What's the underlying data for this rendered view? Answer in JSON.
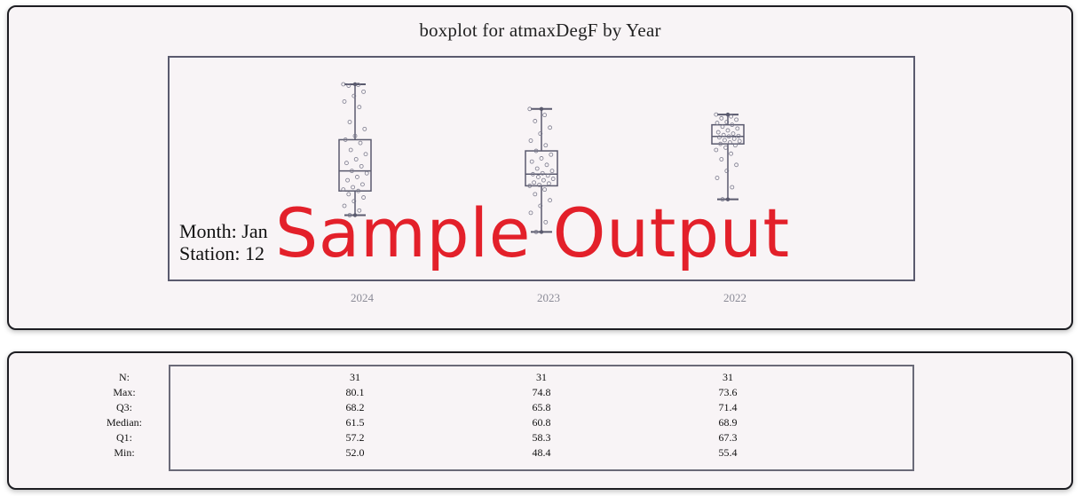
{
  "chart_panel": {
    "title": "boxplot for atmaxDegF by Year",
    "month_label": "Month: Jan",
    "station_label": "Station: 12",
    "watermark": "Sample Output"
  },
  "colors": {
    "panel_bg": "#f8f4f6",
    "box_stroke": "#5a5a6e",
    "watermark": "#e3202a"
  },
  "chart_data": {
    "type": "boxplot",
    "title": "boxplot for atmaxDegF by Year",
    "xlabel": "",
    "ylabel": "",
    "categories": [
      "2024",
      "2023",
      "2022"
    ],
    "ylim": [
      38,
      86
    ],
    "grid": false,
    "series": [
      {
        "category": "2024",
        "n": 31,
        "max": 80.1,
        "q3": 68.2,
        "median": 61.5,
        "q1": 57.2,
        "min": 52.0,
        "points": [
          80.1,
          80.0,
          79.8,
          78.5,
          77.6,
          76.4,
          75.2,
          72.0,
          70.5,
          69.0,
          68.2,
          67.5,
          66.0,
          65.1,
          64.0,
          63.2,
          62.5,
          61.5,
          61.0,
          60.2,
          59.5,
          58.6,
          58.0,
          57.5,
          57.2,
          56.5,
          55.8,
          55.0,
          54.0,
          53.0,
          52.0
        ]
      },
      {
        "category": "2023",
        "n": 31,
        "max": 74.8,
        "q3": 65.8,
        "median": 60.8,
        "q1": 58.3,
        "min": 48.4,
        "points": [
          74.8,
          73.5,
          72.2,
          70.8,
          69.5,
          68.0,
          67.0,
          65.8,
          65.0,
          64.2,
          63.5,
          62.8,
          62.0,
          61.5,
          61.0,
          60.8,
          60.5,
          60.2,
          59.8,
          59.5,
          59.0,
          58.8,
          58.5,
          58.3,
          57.5,
          56.5,
          55.2,
          54.0,
          52.5,
          50.5,
          48.4
        ]
      },
      {
        "category": "2022",
        "n": 31,
        "max": 73.6,
        "q3": 71.4,
        "median": 68.9,
        "q1": 67.3,
        "min": 55.4,
        "points": [
          73.6,
          73.2,
          72.8,
          72.5,
          72.0,
          71.8,
          71.4,
          71.0,
          70.6,
          70.2,
          69.8,
          69.5,
          69.2,
          69.0,
          68.9,
          68.7,
          68.4,
          68.1,
          67.9,
          67.6,
          67.3,
          67.0,
          66.5,
          66.0,
          65.2,
          64.0,
          62.8,
          61.5,
          60.0,
          58.0,
          55.4
        ]
      }
    ]
  },
  "stats_table": {
    "row_labels": [
      "N:",
      "Max:",
      "Q3:",
      "Median:",
      "Q1:",
      "Min:"
    ],
    "columns": [
      {
        "year": "2024",
        "values": [
          "31",
          "80.1",
          "68.2",
          "61.5",
          "57.2",
          "52.0"
        ]
      },
      {
        "year": "2023",
        "values": [
          "31",
          "74.8",
          "65.8",
          "60.8",
          "58.3",
          "48.4"
        ]
      },
      {
        "year": "2022",
        "values": [
          "31",
          "73.6",
          "71.4",
          "68.9",
          "67.3",
          "55.4"
        ]
      }
    ]
  }
}
